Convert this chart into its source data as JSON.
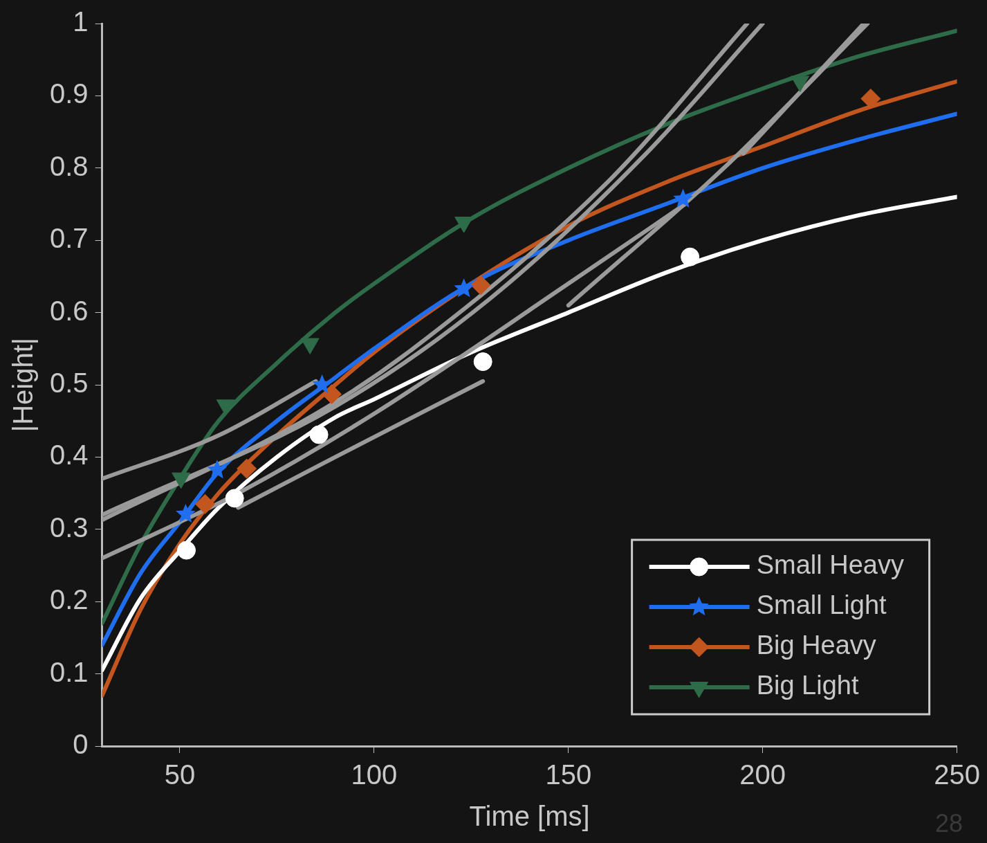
{
  "chart_data": {
    "type": "line",
    "xlabel": "Time [ms]",
    "ylabel": "|Height|",
    "xlim": [
      30,
      250
    ],
    "xticks": [
      50,
      100,
      150,
      200,
      250
    ],
    "ylim": [
      0,
      1
    ],
    "yticks": [
      0,
      0.1,
      0.2,
      0.3,
      0.4,
      0.5,
      0.6,
      0.7,
      0.8,
      0.9,
      1
    ],
    "grid": false,
    "legend": "bottom right",
    "annotations": [
      "28"
    ],
    "series": [
      {
        "type": "line",
        "color": "#9a9a9a",
        "marker": "none",
        "x": [
          30,
          85,
          110,
          160,
          196
        ],
        "values": [
          0.313,
          0.46,
          0.55,
          0.78,
          1.0
        ]
      },
      {
        "type": "line",
        "color": "#9a9a9a",
        "marker": "none",
        "x": [
          30,
          90,
          130,
          170,
          200
        ],
        "values": [
          0.32,
          0.47,
          0.62,
          0.82,
          1.0
        ]
      },
      {
        "type": "line",
        "color": "#9a9a9a",
        "marker": "none",
        "x": [
          30,
          50,
          65,
          100,
          150,
          180
        ],
        "values": [
          0.26,
          0.31,
          0.35,
          0.46,
          0.64,
          0.75
        ]
      },
      {
        "type": "line",
        "color": "#9a9a9a",
        "marker": "none",
        "x": [
          65,
          90,
          128
        ],
        "values": [
          0.33,
          0.4,
          0.505
        ]
      },
      {
        "type": "line",
        "color": "#9a9a9a",
        "marker": "none",
        "x": [
          30,
          60,
          85
        ],
        "values": [
          0.37,
          0.43,
          0.505
        ]
      },
      {
        "type": "line",
        "color": "#9a9a9a",
        "marker": "none",
        "x": [
          150,
          190,
          227
        ],
        "values": [
          0.61,
          0.8,
          1.0
        ]
      },
      {
        "type": "line",
        "color": "#9a9a9a",
        "marker": "none",
        "x": [
          195,
          226
        ],
        "values": [
          0.82,
          1.0
        ]
      },
      {
        "type": "line",
        "color": "#ffffff",
        "marker": "none",
        "x": [
          30,
          40,
          50,
          60,
          75,
          90,
          100,
          125,
          150,
          175,
          200,
          225,
          250
        ],
        "values": [
          0.105,
          0.205,
          0.27,
          0.33,
          0.4,
          0.455,
          0.48,
          0.545,
          0.6,
          0.655,
          0.7,
          0.735,
          0.76
        ]
      },
      {
        "type": "line",
        "color": "#1f6ef0",
        "marker": "none",
        "x": [
          30,
          40,
          50,
          60,
          75,
          90,
          100,
          125,
          150,
          175,
          200,
          225,
          250
        ],
        "values": [
          0.14,
          0.24,
          0.31,
          0.38,
          0.45,
          0.51,
          0.55,
          0.64,
          0.7,
          0.75,
          0.8,
          0.84,
          0.875
        ]
      },
      {
        "type": "line",
        "color": "#c2561e",
        "marker": "none",
        "x": [
          30,
          40,
          50,
          60,
          75,
          90,
          100,
          125,
          150,
          175,
          200,
          225,
          250
        ],
        "values": [
          0.07,
          0.19,
          0.28,
          0.35,
          0.43,
          0.5,
          0.545,
          0.64,
          0.72,
          0.78,
          0.83,
          0.88,
          0.92
        ]
      },
      {
        "type": "line",
        "color": "#2e6b48",
        "marker": "none",
        "x": [
          30,
          40,
          50,
          60,
          75,
          90,
          100,
          125,
          150,
          175,
          200,
          225,
          250
        ],
        "values": [
          0.17,
          0.28,
          0.37,
          0.45,
          0.53,
          0.6,
          0.64,
          0.73,
          0.8,
          0.86,
          0.91,
          0.955,
          0.99
        ]
      },
      {
        "type": "scatter",
        "name": "Small Heavy",
        "color": "#ffffff",
        "marker": "circle",
        "x": [
          51.7,
          64.1,
          85.8,
          128,
          181.3
        ],
        "values": [
          0.271,
          0.343,
          0.431,
          0.532,
          0.677
        ]
      },
      {
        "type": "scatter",
        "name": "Small Light",
        "color": "#1f6ef0",
        "marker": "star",
        "x": [
          51.5,
          59.6,
          86.6,
          123.1,
          179.5
        ],
        "values": [
          0.321,
          0.382,
          0.5,
          0.633,
          0.757
        ]
      },
      {
        "type": "scatter",
        "name": "Big Heavy",
        "color": "#c2561e",
        "marker": "diamond",
        "x": [
          56.5,
          67.2,
          89.1,
          127.4,
          227.8
        ],
        "values": [
          0.335,
          0.384,
          0.487,
          0.638,
          0.896
        ]
      },
      {
        "type": "scatter",
        "name": "Big Light",
        "color": "#2e6b48",
        "marker": "triangle",
        "x": [
          50.3,
          61.8,
          83.5,
          123.1,
          209.6
        ],
        "values": [
          0.371,
          0.472,
          0.557,
          0.725,
          0.92
        ]
      }
    ]
  }
}
